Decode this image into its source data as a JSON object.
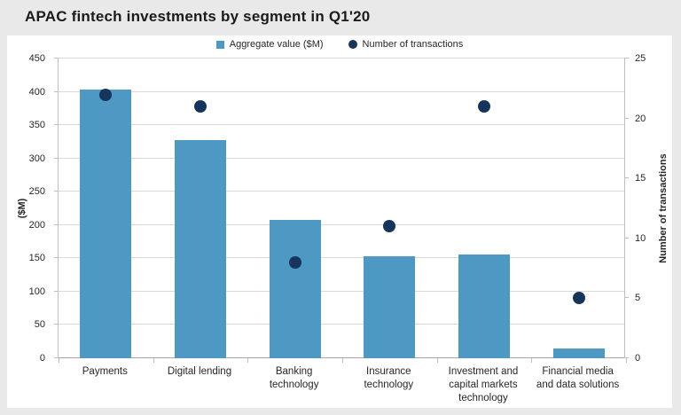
{
  "title": "APAC fintech investments by segment in Q1'20",
  "legend": {
    "items": [
      {
        "label": "Aggregate value ($M)",
        "marker": "square-icon",
        "color": "#4e99c4"
      },
      {
        "label": "Number of transactions",
        "marker": "circle-icon",
        "color": "#16355c"
      }
    ]
  },
  "chart_data": {
    "type": "bar",
    "title": "APAC fintech investments by segment in Q1'20",
    "categories": [
      "Payments",
      "Digital lending",
      "Banking technology",
      "Insurance technology",
      "Investment and capital markets technology",
      "Financial media and data solutions"
    ],
    "series": [
      {
        "name": "Aggregate value ($M)",
        "type": "bar",
        "axis": "left",
        "color": "#4e99c4",
        "values": [
          403,
          328,
          208,
          153,
          156,
          15
        ]
      },
      {
        "name": "Number of transactions",
        "type": "scatter",
        "axis": "right",
        "color": "#16355c",
        "values": [
          22,
          21,
          8,
          11,
          21,
          5
        ]
      }
    ],
    "left_axis": {
      "label": "($M)",
      "min": 0,
      "max": 450,
      "step": 50
    },
    "right_axis": {
      "label": "Number of transactions",
      "min": 0,
      "max": 25,
      "step": 5
    },
    "grid": true,
    "legend_position": "top-center"
  },
  "colors": {
    "bar": "#4e99c4",
    "dot": "#16355c",
    "gridline": "#d9d9d9",
    "axis_line": "#bfbfbf",
    "page_background": "#e9e9e9",
    "panel_background": "#ffffff",
    "text": "#262626"
  }
}
